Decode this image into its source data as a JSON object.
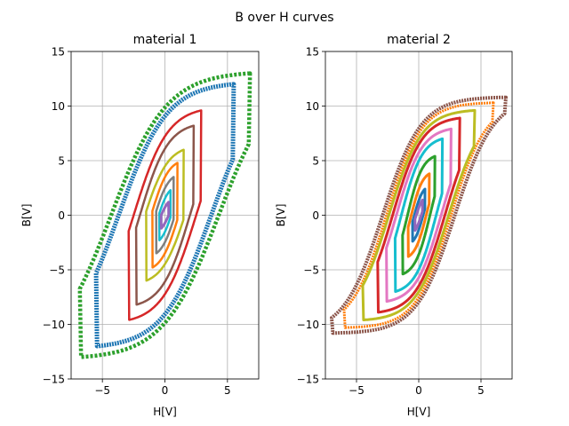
{
  "figure": {
    "suptitle": "B over H curves"
  },
  "chart_data": [
    {
      "type": "line",
      "title": "material 1",
      "xlabel": "H[V]",
      "ylabel": "B[V]",
      "xlim": [
        -7.5,
        7.5
      ],
      "ylim": [
        -15,
        15
      ],
      "xticks": [
        -5,
        0,
        5
      ],
      "xtick_labels": [
        "−5",
        "0",
        "5"
      ],
      "yticks": [
        -15,
        -10,
        -5,
        0,
        5,
        10,
        15
      ],
      "ytick_labels": [
        "−15",
        "−10",
        "−5",
        "0",
        "5",
        "10",
        "15"
      ],
      "grid": true,
      "series": [
        {
          "color": "#2ca02c",
          "hc": 4.3,
          "h_max": 6.8,
          "b_max": 13.0,
          "width": 4.5,
          "dash": "3,2"
        },
        {
          "color": "#1f77b4",
          "hc": 3.7,
          "h_max": 5.5,
          "b_max": 12.0,
          "width": 5.0,
          "dash": "2,1"
        },
        {
          "color": "#d62728",
          "hc": 2.5,
          "h_max": 2.9,
          "b_max": 9.6,
          "width": 2.5,
          "dash": ""
        },
        {
          "color": "#8c564b",
          "hc": 2.0,
          "h_max": 2.3,
          "b_max": 8.2,
          "width": 2.5,
          "dash": ""
        },
        {
          "color": "#bcbd22",
          "hc": 1.6,
          "h_max": 1.5,
          "b_max": 6.0,
          "width": 2.5,
          "dash": ""
        },
        {
          "color": "#ff7f0e",
          "hc": 1.1,
          "h_max": 1.0,
          "b_max": 4.8,
          "width": 2.5,
          "dash": ""
        },
        {
          "color": "#7f7f7f",
          "hc": 0.8,
          "h_max": 0.7,
          "b_max": 3.5,
          "width": 2.5,
          "dash": ""
        },
        {
          "color": "#17becf",
          "hc": 0.5,
          "h_max": 0.45,
          "b_max": 2.3,
          "width": 2.5,
          "dash": ""
        },
        {
          "color": "#9467bd",
          "hc": 0.3,
          "h_max": 0.3,
          "b_max": 1.2,
          "width": 3.0,
          "dash": ""
        }
      ]
    },
    {
      "type": "line",
      "title": "material 2",
      "xlabel": "H[V]",
      "ylabel": "B[V]",
      "xlim": [
        -7.5,
        7.5
      ],
      "ylim": [
        -15,
        15
      ],
      "xticks": [
        -5,
        0,
        5
      ],
      "xtick_labels": [
        "−5",
        "0",
        "5"
      ],
      "yticks": [
        -15,
        -10,
        -5,
        0,
        5,
        10,
        15
      ],
      "ytick_labels": [
        "−15",
        "−10",
        "−5",
        "0",
        "5",
        "10",
        "15"
      ],
      "grid": true,
      "series": [
        {
          "color": "#8c564b",
          "hc": 2.9,
          "h_max": 7.0,
          "b_max": 10.8,
          "width": 4.0,
          "dash": "2,1"
        },
        {
          "color": "#ff7f0e",
          "hc": 2.6,
          "h_max": 6.0,
          "b_max": 10.3,
          "width": 3.0,
          "dash": "2,1"
        },
        {
          "color": "#bcbd22",
          "hc": 2.4,
          "h_max": 4.5,
          "b_max": 9.6,
          "width": 3.0,
          "dash": ""
        },
        {
          "color": "#d62728",
          "hc": 2.1,
          "h_max": 3.3,
          "b_max": 8.9,
          "width": 3.0,
          "dash": ""
        },
        {
          "color": "#e377c2",
          "hc": 1.8,
          "h_max": 2.6,
          "b_max": 7.9,
          "width": 3.0,
          "dash": ""
        },
        {
          "color": "#17becf",
          "hc": 1.4,
          "h_max": 1.9,
          "b_max": 7.0,
          "width": 3.0,
          "dash": ""
        },
        {
          "color": "#2ca02c",
          "hc": 0.9,
          "h_max": 1.3,
          "b_max": 5.4,
          "width": 3.0,
          "dash": ""
        },
        {
          "color": "#ff7f0e",
          "hc": 0.6,
          "h_max": 0.85,
          "b_max": 3.8,
          "width": 3.0,
          "dash": ""
        },
        {
          "color": "#1f77b4",
          "hc": 0.35,
          "h_max": 0.5,
          "b_max": 2.4,
          "width": 3.0,
          "dash": ""
        },
        {
          "color": "#9467bd",
          "hc": 0.2,
          "h_max": 0.3,
          "b_max": 1.4,
          "width": 3.0,
          "dash": ""
        }
      ]
    }
  ]
}
